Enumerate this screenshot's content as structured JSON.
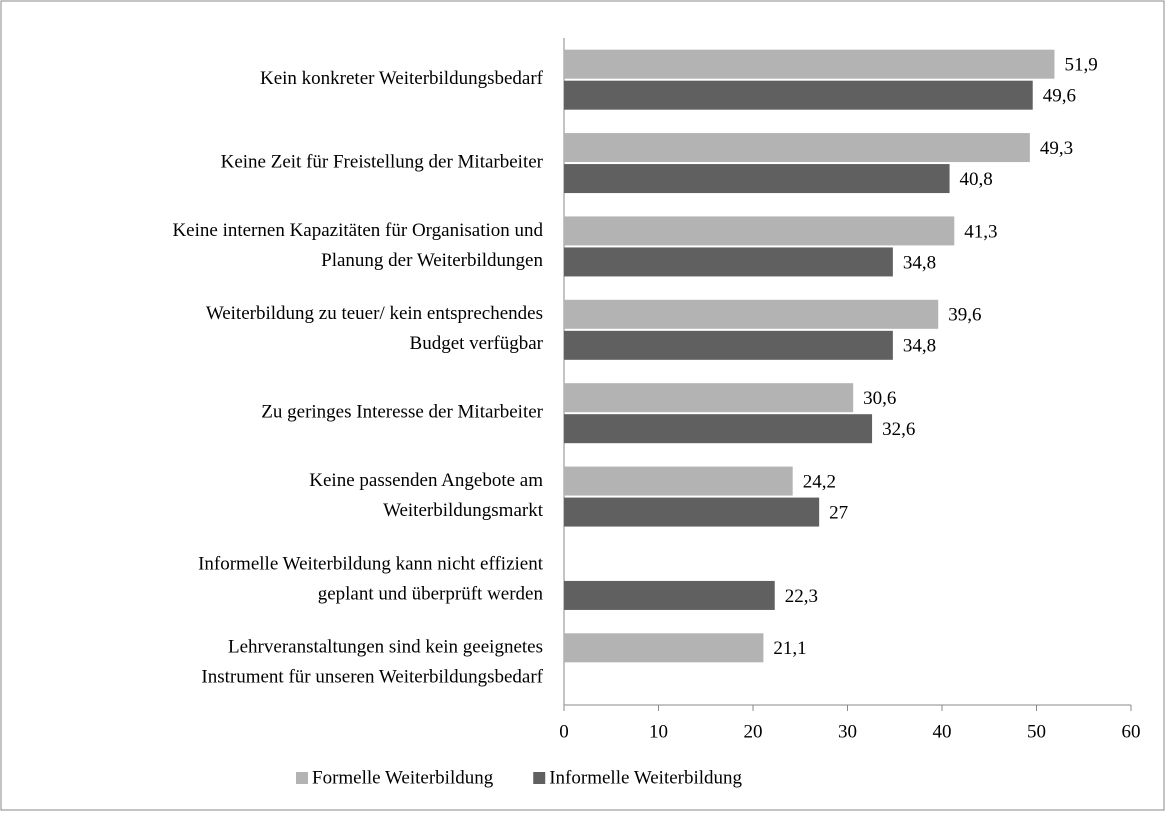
{
  "chart_data": {
    "type": "hbar",
    "categories": [
      [
        "Kein konkreter Weiterbildungsbedarf"
      ],
      [
        "Keine Zeit für Freistellung der Mitarbeiter"
      ],
      [
        "Keine internen Kapazitäten für Organisation und",
        "Planung der Weiterbildungen"
      ],
      [
        "Weiterbildung zu teuer/ kein entsprechendes",
        "Budget verfügbar"
      ],
      [
        "Zu geringes Interesse der Mitarbeiter"
      ],
      [
        "Keine passenden Angebote am",
        "Weiterbildungsmarkt"
      ],
      [
        "Informelle Weiterbildung kann nicht effizient",
        "geplant und überprüft werden"
      ],
      [
        "Lehrveranstaltungen sind kein geeignetes",
        "Instrument für unseren Weiterbildungsbedarf"
      ]
    ],
    "series": [
      {
        "name": "Formelle Weiterbildung",
        "color": "#b3b3b3",
        "values": [
          51.9,
          49.3,
          41.3,
          39.6,
          30.6,
          24.2,
          null,
          21.1
        ],
        "value_labels": [
          "51,9",
          "49,3",
          "41,3",
          "39,6",
          "30,6",
          "24,2",
          null,
          "21,1"
        ]
      },
      {
        "name": "Informelle Weiterbildung",
        "color": "#606060",
        "values": [
          49.6,
          40.8,
          34.8,
          34.8,
          32.6,
          27,
          22.3,
          null
        ],
        "value_labels": [
          "49,6",
          "40,8",
          "34,8",
          "34,8",
          "32,6",
          "27",
          "22,3",
          null
        ]
      }
    ],
    "xlim": [
      0,
      60
    ],
    "xticks": [
      0,
      10,
      20,
      30,
      40,
      50,
      60
    ],
    "legend": "bottom"
  }
}
